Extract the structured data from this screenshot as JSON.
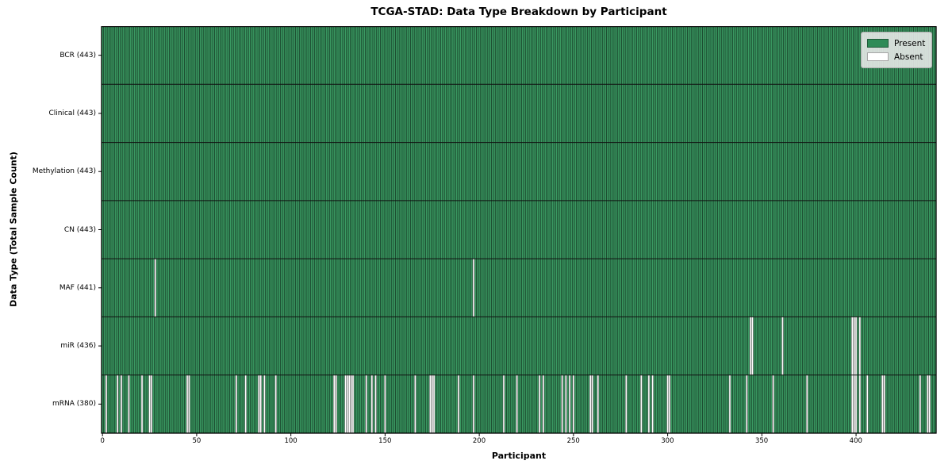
{
  "chart_data": {
    "type": "heatmap",
    "title": "TCGA-STAD: Data Type Breakdown by Participant",
    "xlabel": "Participant",
    "ylabel": "Data Type (Total Sample Count)",
    "n_participants": 443,
    "x_ticks": [
      0,
      50,
      100,
      150,
      200,
      250,
      300,
      350,
      400
    ],
    "legend": [
      {
        "label": "Present",
        "color": "#2e8b57"
      },
      {
        "label": "Absent",
        "color": "#ffffff"
      }
    ],
    "colors": {
      "present_fill": "#3a9a62",
      "bar_edge": "rgba(0,0,0,0.55)",
      "absent_fill": "#ffffff",
      "row_divider": "#111111",
      "frame": "#000000"
    },
    "rows": [
      {
        "name": "BCR",
        "total": 443,
        "label": "BCR (443)",
        "absent": []
      },
      {
        "name": "Clinical",
        "total": 443,
        "label": "Clinical (443)",
        "absent": []
      },
      {
        "name": "Methylation",
        "total": 443,
        "label": "Methylation (443)",
        "absent": []
      },
      {
        "name": "CN",
        "total": 443,
        "label": "CN (443)",
        "absent": []
      },
      {
        "name": "MAF",
        "total": 441,
        "label": "MAF (441)",
        "absent": [
          28,
          197
        ]
      },
      {
        "name": "miR",
        "total": 436,
        "label": "miR (436)",
        "absent": [
          344,
          345,
          361,
          398,
          399,
          400,
          402
        ]
      },
      {
        "name": "mRNA",
        "total": 380,
        "label": "mRNA (380)",
        "absent": [
          2,
          8,
          10,
          14,
          21,
          25,
          26,
          45,
          46,
          71,
          76,
          83,
          84,
          86,
          92,
          123,
          124,
          129,
          130,
          131,
          132,
          133,
          140,
          143,
          145,
          150,
          166,
          174,
          175,
          176,
          189,
          197,
          213,
          220,
          232,
          234,
          244,
          246,
          248,
          250,
          259,
          260,
          263,
          278,
          286,
          290,
          292,
          300,
          301,
          333,
          342,
          356,
          374,
          398,
          399,
          400,
          402,
          406,
          414,
          415,
          434,
          438,
          439
        ]
      }
    ]
  }
}
